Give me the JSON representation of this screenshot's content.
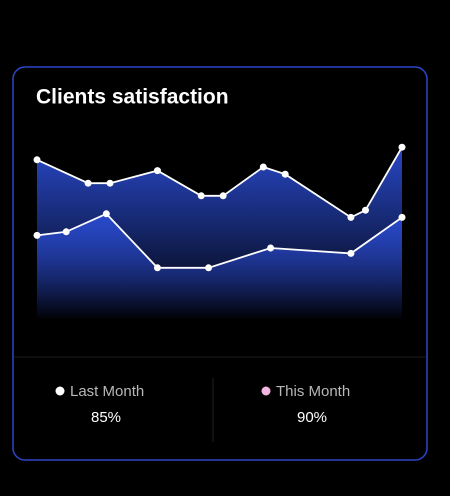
{
  "chart_data": {
    "type": "area",
    "title": "Clients satisfaction",
    "xlim": [
      0,
      100
    ],
    "ylim": [
      0,
      100
    ],
    "line_color": "#ffffff",
    "fill_color": "#2a4bd0",
    "series": [
      {
        "name": "Last Month",
        "color": "#ffffff",
        "value": 85,
        "value_label": "85%",
        "x": [
          0,
          14,
          20,
          33,
          45,
          51,
          62,
          68,
          86,
          90,
          100
        ],
        "values": [
          89,
          76,
          76,
          83,
          69,
          69,
          85,
          81,
          57,
          61,
          96
        ]
      },
      {
        "name": "This Month",
        "color": "#f3b6e3",
        "value": 90,
        "value_label": "90%",
        "x": [
          0,
          8,
          19,
          33,
          47,
          64,
          86,
          100
        ],
        "values": [
          47,
          49,
          59,
          29,
          29,
          40,
          37,
          57
        ]
      }
    ]
  }
}
